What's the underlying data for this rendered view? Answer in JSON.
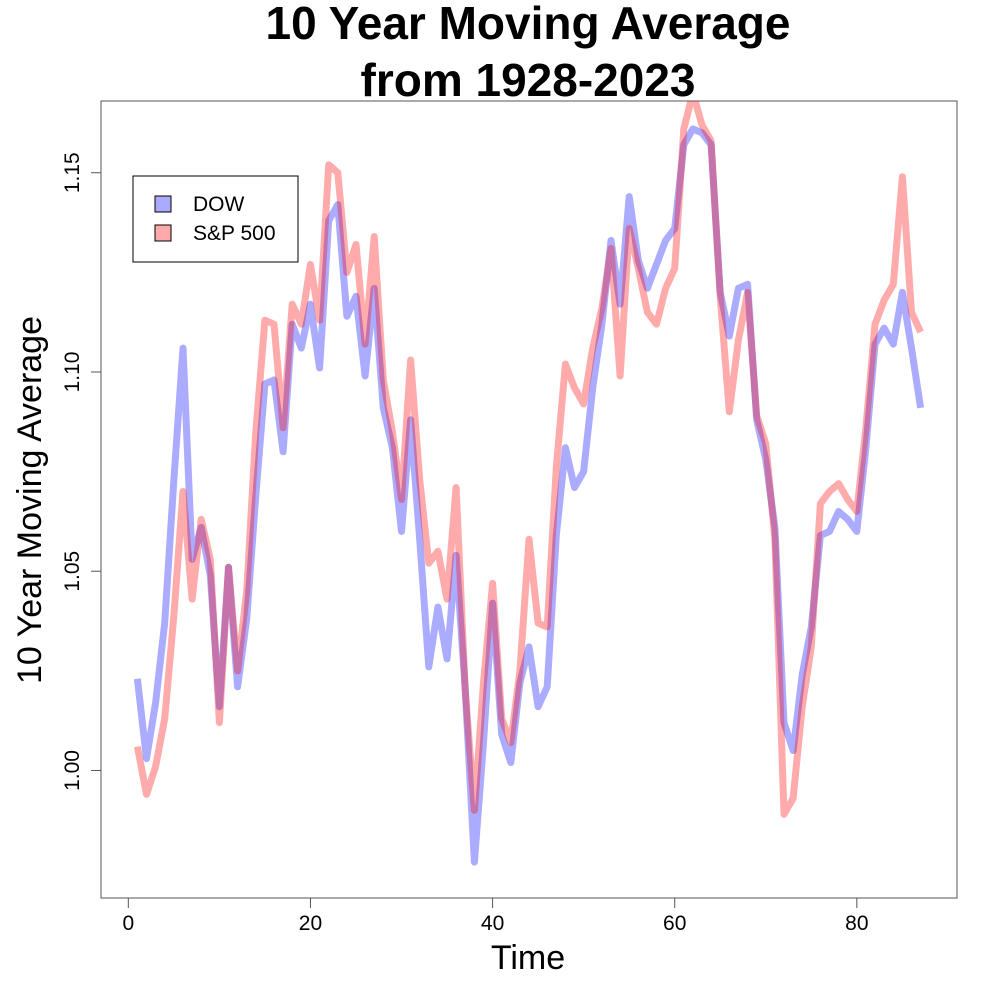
{
  "chart_data": {
    "type": "line",
    "title_lines": [
      "10 Year Moving Average",
      "from 1928-2023"
    ],
    "xlabel": "Time",
    "ylabel": "10 Year Moving Average",
    "xlim": [
      -3,
      91
    ],
    "ylim": [
      0.968,
      1.168
    ],
    "xticks": [
      0,
      20,
      40,
      60,
      80
    ],
    "yticks": [
      1.0,
      1.05,
      1.1,
      1.15
    ],
    "ytick_labels": [
      "1.00",
      "1.05",
      "1.10",
      "1.15"
    ],
    "grid": false,
    "legend_position": "top-left",
    "x": [
      1,
      2,
      3,
      4,
      5,
      6,
      7,
      8,
      9,
      10,
      11,
      12,
      13,
      14,
      15,
      16,
      17,
      18,
      19,
      20,
      21,
      22,
      23,
      24,
      25,
      26,
      27,
      28,
      29,
      30,
      31,
      32,
      33,
      34,
      35,
      36,
      37,
      38,
      39,
      40,
      41,
      42,
      43,
      44,
      45,
      46,
      47,
      48,
      49,
      50,
      51,
      52,
      53,
      54,
      55,
      56,
      57,
      58,
      59,
      60,
      61,
      62,
      63,
      64,
      65,
      66,
      67,
      68,
      69,
      70,
      71,
      72,
      73,
      74,
      75,
      76,
      77,
      78,
      79,
      80,
      81,
      82,
      83,
      84,
      85,
      86,
      87
    ],
    "series": [
      {
        "name": "DOW",
        "color": "#aaaaff",
        "values": [
          1.023,
          1.003,
          1.017,
          1.037,
          1.073,
          1.106,
          1.053,
          1.061,
          1.049,
          1.016,
          1.051,
          1.021,
          1.038,
          1.069,
          1.097,
          1.098,
          1.08,
          1.112,
          1.106,
          1.117,
          1.101,
          1.138,
          1.142,
          1.114,
          1.119,
          1.099,
          1.121,
          1.091,
          1.081,
          1.06,
          1.088,
          1.058,
          1.026,
          1.041,
          1.028,
          1.054,
          1.02,
          0.977,
          1.007,
          1.042,
          1.009,
          1.002,
          1.022,
          1.031,
          1.016,
          1.021,
          1.059,
          1.081,
          1.071,
          1.075,
          1.096,
          1.112,
          1.133,
          1.117,
          1.144,
          1.128,
          1.121,
          1.127,
          1.133,
          1.136,
          1.157,
          1.161,
          1.16,
          1.157,
          1.12,
          1.109,
          1.121,
          1.122,
          1.088,
          1.078,
          1.061,
          1.012,
          1.005,
          1.024,
          1.036,
          1.059,
          1.06,
          1.065,
          1.063,
          1.06,
          1.081,
          1.107,
          1.111,
          1.107,
          1.12,
          1.106,
          1.091
        ]
      },
      {
        "name": "S&P 500",
        "color": "#ffaaaa",
        "values": [
          1.006,
          0.994,
          1.001,
          1.013,
          1.039,
          1.07,
          1.043,
          1.063,
          1.053,
          1.012,
          1.051,
          1.025,
          1.045,
          1.085,
          1.113,
          1.112,
          1.086,
          1.117,
          1.112,
          1.127,
          1.113,
          1.152,
          1.15,
          1.125,
          1.132,
          1.107,
          1.134,
          1.098,
          1.085,
          1.068,
          1.103,
          1.073,
          1.052,
          1.055,
          1.043,
          1.071,
          1.02,
          0.99,
          1.022,
          1.047,
          1.013,
          1.007,
          1.025,
          1.058,
          1.037,
          1.036,
          1.076,
          1.102,
          1.096,
          1.092,
          1.106,
          1.116,
          1.131,
          1.099,
          1.136,
          1.126,
          1.115,
          1.112,
          1.121,
          1.126,
          1.161,
          1.17,
          1.162,
          1.158,
          1.119,
          1.09,
          1.108,
          1.12,
          1.089,
          1.082,
          1.058,
          0.989,
          0.993,
          1.016,
          1.031,
          1.067,
          1.07,
          1.072,
          1.068,
          1.065,
          1.086,
          1.112,
          1.118,
          1.122,
          1.149,
          1.115,
          1.11
        ]
      }
    ]
  }
}
